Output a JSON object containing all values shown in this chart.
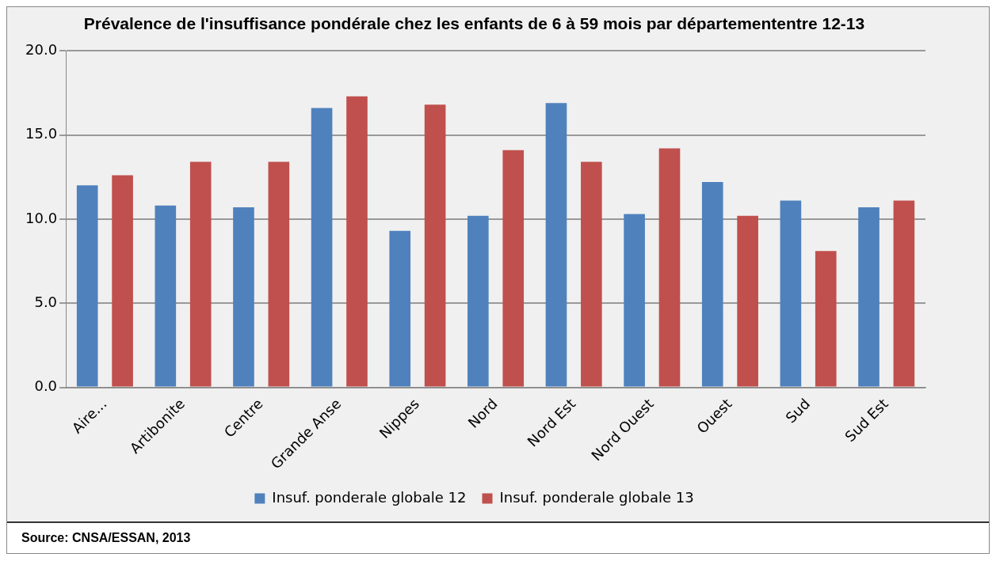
{
  "chart_data": {
    "type": "bar",
    "title": "Prévalence de l'insuffisance pondérale chez les enfants de 6 à 59 mois par départemententre 12-13",
    "categories": [
      "Aire...",
      "Artibonite",
      "Centre",
      "Grande Anse",
      "Nippes",
      "Nord",
      "Nord Est",
      "Nord Ouest",
      "Ouest",
      "Sud",
      "Sud Est"
    ],
    "series": [
      {
        "name": "Insuf. ponderale globale 12",
        "color": "#4f81bd",
        "values": [
          12.0,
          10.8,
          10.7,
          16.6,
          9.3,
          10.2,
          16.9,
          10.3,
          12.2,
          11.1,
          10.7
        ]
      },
      {
        "name": "Insuf. ponderale globale 13",
        "color": "#c0504d",
        "values": [
          12.6,
          13.4,
          13.4,
          17.3,
          16.8,
          14.1,
          13.4,
          14.2,
          10.2,
          8.1,
          11.1
        ]
      }
    ],
    "ylim": [
      0,
      20
    ],
    "yticks": [
      {
        "value": 0,
        "label": "0.0"
      },
      {
        "value": 5,
        "label": "5.0"
      },
      {
        "value": 10,
        "label": "10.0"
      },
      {
        "value": 15,
        "label": "15.0"
      },
      {
        "value": 20,
        "label": "20.0"
      }
    ],
    "grid": "y",
    "legend": "bottom",
    "annotations": [
      "Source: CNSA/ESSAN, 2013"
    ]
  }
}
